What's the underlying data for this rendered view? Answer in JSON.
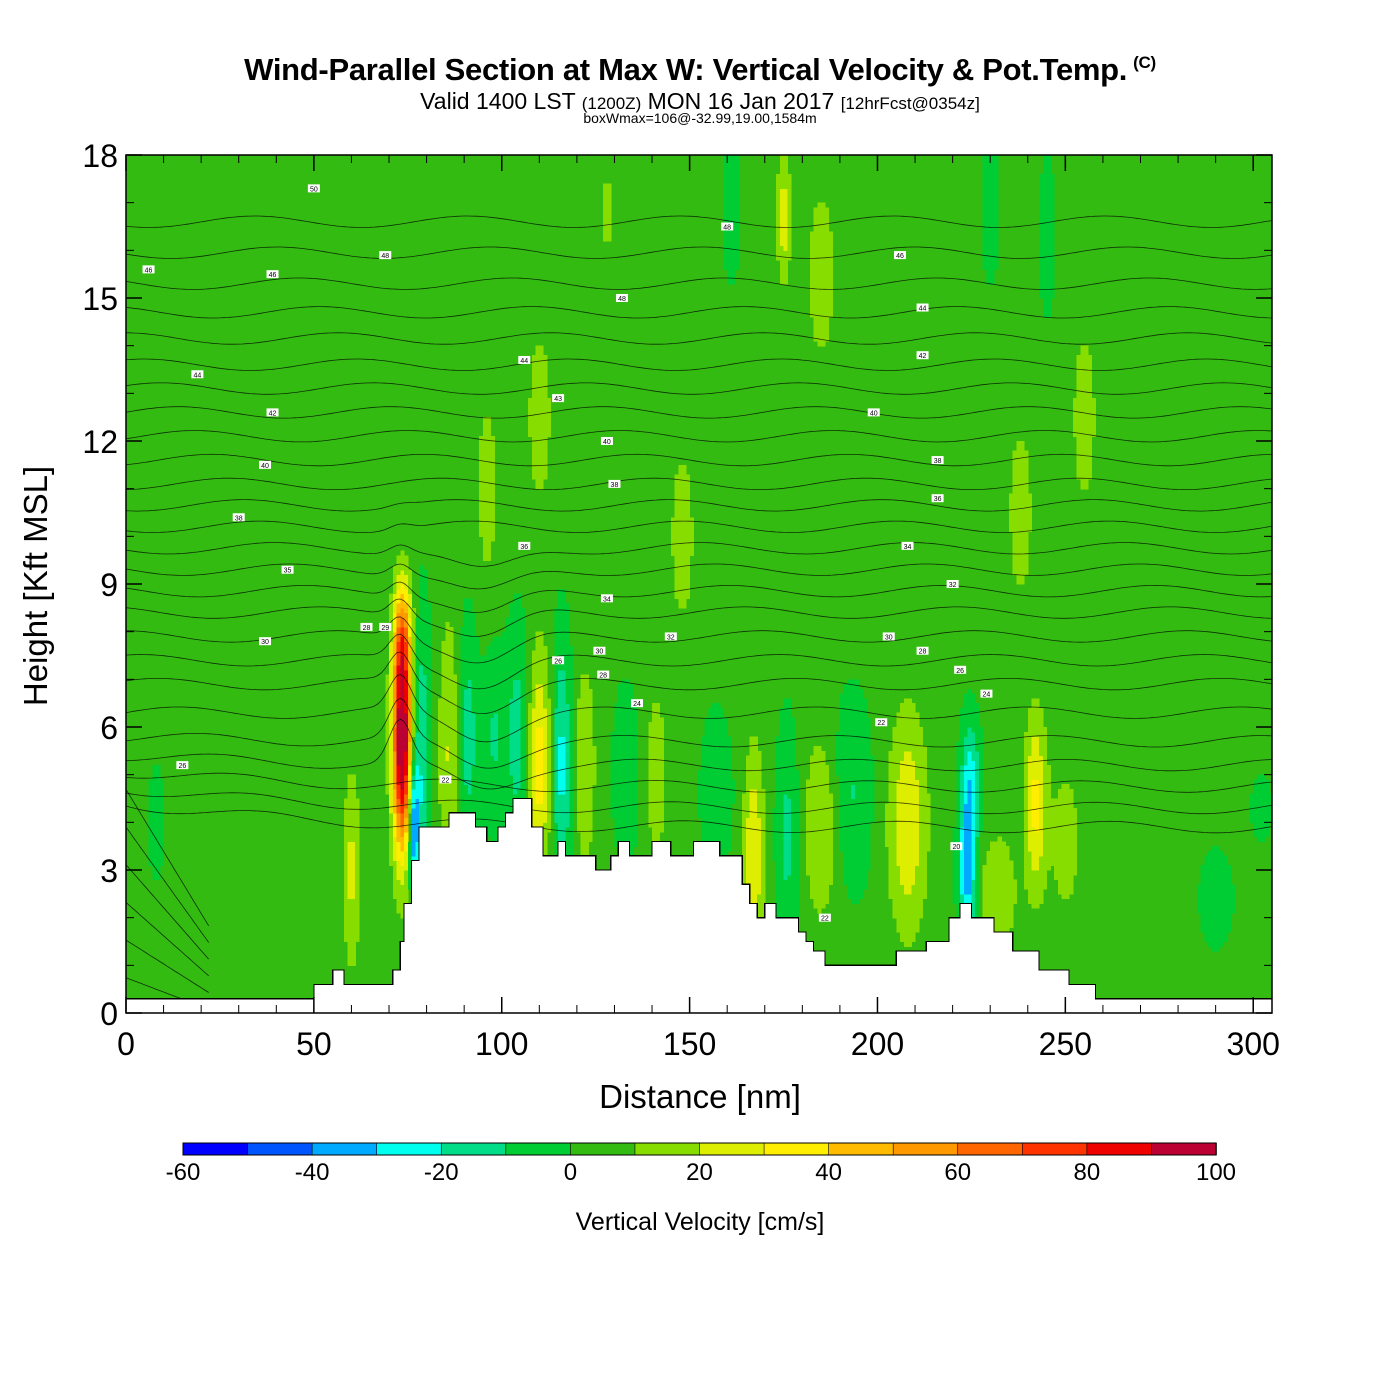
{
  "header": {
    "title": "Wind-Parallel Section at Max W: Vertical Velocity & Pot.Temp.",
    "copyright": "(C)",
    "valid_prefix": "Valid 1400 LST",
    "utc": "(1200Z)",
    "valid_date": "MON 16 Jan 2017",
    "forecast": "[12hrFcst@0354z]",
    "box_wmax": "boxWmax=106@-32.99,19.00,1584m"
  },
  "chart_data": {
    "type": "heatmap",
    "title": "Wind-Parallel Section at Max W: Vertical Velocity & Pot.Temp.",
    "xlabel": "Distance [nm]",
    "ylabel": "Height [Kft MSL]",
    "xlim": [
      0,
      305
    ],
    "ylim": [
      0,
      18
    ],
    "xticks": [
      0,
      50,
      100,
      150,
      200,
      250,
      300
    ],
    "xtick_labels": [
      "0",
      "50",
      "100",
      "150",
      "200",
      "250",
      "300"
    ],
    "yticks": [
      0,
      3,
      6,
      9,
      12,
      15,
      18
    ],
    "ytick_labels": [
      "0",
      "3",
      "6",
      "9",
      "12",
      "15",
      "18"
    ],
    "colorbar": {
      "label": "Vertical Velocity [cm/s]",
      "range": [
        -60,
        100
      ],
      "step": 10,
      "tick_values": [
        -60,
        -40,
        -20,
        0,
        20,
        40,
        60,
        80,
        100
      ],
      "tick_labels": [
        "-60",
        "-40",
        "-20",
        "0",
        "20",
        "40",
        "60",
        "80",
        "100"
      ],
      "colors": [
        "#0000ff",
        "#0055ff",
        "#00aaff",
        "#00ffee",
        "#00dd88",
        "#00cc33",
        "#33bb11",
        "#88dd00",
        "#ddee00",
        "#ffee00",
        "#ffbb00",
        "#ff9900",
        "#ff6600",
        "#ff3300",
        "#ee0000",
        "#bb0033"
      ]
    },
    "background_velocity": 3,
    "terrain": {
      "x": [
        0,
        50,
        50,
        55,
        55,
        58,
        58,
        63,
        63,
        71,
        71,
        73,
        73,
        74,
        74,
        76,
        76,
        78,
        78,
        86,
        86,
        93,
        93,
        96,
        96,
        99,
        99,
        101,
        101,
        103,
        103,
        108,
        108,
        111,
        111,
        115,
        115,
        117,
        117,
        125,
        125,
        129,
        129,
        131,
        131,
        134,
        134,
        140,
        140,
        145,
        145,
        151,
        151,
        158,
        158,
        164,
        164,
        166,
        166,
        168,
        168,
        170,
        170,
        173,
        173,
        179,
        179,
        181,
        181,
        183,
        183,
        186,
        186,
        205,
        205,
        213,
        213,
        219,
        219,
        222,
        222,
        225,
        225,
        231,
        231,
        236,
        236,
        243,
        243,
        251,
        251,
        258,
        258,
        305
      ],
      "y": [
        0.3,
        0.3,
        0.6,
        0.6,
        0.9,
        0.9,
        0.6,
        0.6,
        0.6,
        0.6,
        0.9,
        0.9,
        1.5,
        1.5,
        2.3,
        2.3,
        3.2,
        3.2,
        3.9,
        3.9,
        4.2,
        4.2,
        3.9,
        3.9,
        3.6,
        3.6,
        3.9,
        3.9,
        4.2,
        4.2,
        4.5,
        4.5,
        3.9,
        3.9,
        3.3,
        3.3,
        3.6,
        3.6,
        3.3,
        3.3,
        3.0,
        3.0,
        3.3,
        3.3,
        3.6,
        3.6,
        3.3,
        3.3,
        3.6,
        3.6,
        3.3,
        3.3,
        3.6,
        3.6,
        3.3,
        3.3,
        2.7,
        2.7,
        2.3,
        2.3,
        2.0,
        2.0,
        2.3,
        2.3,
        2.0,
        2.0,
        1.7,
        1.7,
        1.5,
        1.5,
        1.3,
        1.3,
        1.0,
        1.0,
        1.3,
        1.3,
        1.5,
        1.5,
        2.0,
        2.0,
        2.3,
        2.3,
        2.0,
        2.0,
        1.7,
        1.7,
        1.3,
        1.3,
        0.9,
        0.9,
        0.6,
        0.6,
        0.3,
        0.3
      ]
    },
    "velocity_features": [
      {
        "x": 73.5,
        "y": 5.7,
        "sx": 1.8,
        "sy": 1.6,
        "value": 106
      },
      {
        "x": 73.5,
        "y": 7.9,
        "sx": 1.6,
        "sy": 0.8,
        "value": 35
      },
      {
        "x": 78.5,
        "y": 5.5,
        "sx": 1.6,
        "sy": 2.0,
        "value": -22
      },
      {
        "x": 76.5,
        "y": 4.0,
        "sx": 1.0,
        "sy": 1.0,
        "value": -45
      },
      {
        "x": 86,
        "y": 5.5,
        "sx": 2.0,
        "sy": 2.0,
        "value": 18
      },
      {
        "x": 91,
        "y": 5.8,
        "sx": 2.0,
        "sy": 1.6,
        "value": -18
      },
      {
        "x": 98,
        "y": 5.8,
        "sx": 2.0,
        "sy": 1.3,
        "value": -14
      },
      {
        "x": 104,
        "y": 5.8,
        "sx": 2.0,
        "sy": 1.6,
        "value": -18
      },
      {
        "x": 110,
        "y": 5.2,
        "sx": 2.0,
        "sy": 1.6,
        "value": 32
      },
      {
        "x": 116,
        "y": 5.2,
        "sx": 1.8,
        "sy": 1.8,
        "value": -26
      },
      {
        "x": 122,
        "y": 5.2,
        "sx": 2.0,
        "sy": 1.5,
        "value": 16
      },
      {
        "x": 133,
        "y": 5.0,
        "sx": 2.5,
        "sy": 1.3,
        "value": -10
      },
      {
        "x": 141,
        "y": 5.0,
        "sx": 2.0,
        "sy": 1.3,
        "value": 14
      },
      {
        "x": 157,
        "y": 4.6,
        "sx": 3.0,
        "sy": 1.2,
        "value": -10
      },
      {
        "x": 167,
        "y": 3.3,
        "sx": 1.8,
        "sy": 1.5,
        "value": 28
      },
      {
        "x": 176,
        "y": 3.7,
        "sx": 2.0,
        "sy": 1.6,
        "value": -16
      },
      {
        "x": 185,
        "y": 3.9,
        "sx": 3.5,
        "sy": 1.4,
        "value": 16
      },
      {
        "x": 193,
        "y": 4.6,
        "sx": 3.5,
        "sy": 1.4,
        "value": -14
      },
      {
        "x": 208,
        "y": 4.0,
        "sx": 3.5,
        "sy": 1.6,
        "value": 26
      },
      {
        "x": 224,
        "y": 3.0,
        "sx": 1.6,
        "sy": 1.4,
        "value": -38
      },
      {
        "x": 225,
        "y": 4.9,
        "sx": 1.6,
        "sy": 0.9,
        "value": -20
      },
      {
        "x": 232,
        "y": 2.5,
        "sx": 3.5,
        "sy": 0.9,
        "value": 16
      },
      {
        "x": 242,
        "y": 4.4,
        "sx": 2.0,
        "sy": 1.3,
        "value": 30
      },
      {
        "x": 250,
        "y": 3.6,
        "sx": 3.0,
        "sy": 1.2,
        "value": 12
      },
      {
        "x": 290,
        "y": 2.4,
        "sx": 3.0,
        "sy": 0.7,
        "value": -10
      },
      {
        "x": 302,
        "y": 4.3,
        "sx": 2.0,
        "sy": 0.5,
        "value": -8
      },
      {
        "x": 8,
        "y": 4.0,
        "sx": 1.5,
        "sy": 0.8,
        "value": -10
      },
      {
        "x": 60,
        "y": 3.0,
        "sx": 1.5,
        "sy": 1.4,
        "value": 20
      },
      {
        "x": 175,
        "y": 16.7,
        "sx": 1.2,
        "sy": 0.9,
        "value": 24
      },
      {
        "x": 161,
        "y": 16.8,
        "sx": 1.3,
        "sy": 0.9,
        "value": -14
      },
      {
        "x": 230,
        "y": 16.8,
        "sx": 1.3,
        "sy": 0.9,
        "value": -14
      },
      {
        "x": 245,
        "y": 16.3,
        "sx": 1.3,
        "sy": 1.0,
        "value": -14
      },
      {
        "x": 128,
        "y": 16.8,
        "sx": 1.2,
        "sy": 0.8,
        "value": 10
      },
      {
        "x": 185,
        "y": 15.5,
        "sx": 3,
        "sy": 1.5,
        "value": 12
      },
      {
        "x": 238,
        "y": 10.5,
        "sx": 2.5,
        "sy": 1.5,
        "value": 12
      },
      {
        "x": 148,
        "y": 10.0,
        "sx": 2.5,
        "sy": 1.5,
        "value": 12
      },
      {
        "x": 255,
        "y": 12.5,
        "sx": 2.5,
        "sy": 1.5,
        "value": 12
      },
      {
        "x": 110,
        "y": 12.5,
        "sx": 2.5,
        "sy": 1.5,
        "value": 12
      },
      {
        "x": 96,
        "y": 11.0,
        "sx": 2.0,
        "sy": 1.5,
        "value": 12
      }
    ],
    "theta_contours": {
      "levels": [
        26,
        27,
        28,
        29,
        30,
        31,
        32,
        33,
        34,
        35,
        36,
        37,
        38,
        39,
        40,
        41,
        42,
        43,
        44,
        45,
        46,
        47,
        48,
        49,
        50,
        51
      ],
      "base_heights": [
        3.9,
        4.3,
        4.75,
        5.2,
        5.7,
        6.3,
        6.9,
        7.4,
        7.9,
        8.4,
        8.85,
        9.3,
        9.75,
        10.2,
        10.65,
        11.1,
        11.6,
        12.1,
        12.6,
        13.1,
        13.6,
        14.15,
        14.7,
        15.3,
        15.95,
        16.6
      ],
      "labels": [
        {
          "text": "26",
          "x": 15,
          "y": 5.2
        },
        {
          "text": "30",
          "x": 37,
          "y": 7.8
        },
        {
          "text": "28",
          "x": 64,
          "y": 8.1
        },
        {
          "text": "29",
          "x": 69,
          "y": 8.1
        },
        {
          "text": "35",
          "x": 43,
          "y": 9.3
        },
        {
          "text": "38",
          "x": 30,
          "y": 10.4
        },
        {
          "text": "40",
          "x": 37,
          "y": 11.5
        },
        {
          "text": "42",
          "x": 39,
          "y": 12.6
        },
        {
          "text": "44",
          "x": 19,
          "y": 13.4
        },
        {
          "text": "46",
          "x": 39,
          "y": 15.5
        },
        {
          "text": "46",
          "x": 6,
          "y": 15.6
        },
        {
          "text": "48",
          "x": 69,
          "y": 15.9
        },
        {
          "text": "50",
          "x": 50,
          "y": 17.3
        },
        {
          "text": "48",
          "x": 132,
          "y": 15.0
        },
        {
          "text": "48",
          "x": 160,
          "y": 16.5
        },
        {
          "text": "44",
          "x": 106,
          "y": 13.7
        },
        {
          "text": "43",
          "x": 115,
          "y": 12.9
        },
        {
          "text": "40",
          "x": 128,
          "y": 12.0
        },
        {
          "text": "38",
          "x": 130,
          "y": 11.1
        },
        {
          "text": "36",
          "x": 106,
          "y": 9.8
        },
        {
          "text": "34",
          "x": 128,
          "y": 8.7
        },
        {
          "text": "32",
          "x": 145,
          "y": 7.9
        },
        {
          "text": "30",
          "x": 126,
          "y": 7.6
        },
        {
          "text": "28",
          "x": 127,
          "y": 7.1
        },
        {
          "text": "26",
          "x": 115,
          "y": 7.4
        },
        {
          "text": "24",
          "x": 136,
          "y": 6.5
        },
        {
          "text": "22",
          "x": 85,
          "y": 4.9
        },
        {
          "text": "46",
          "x": 206,
          "y": 15.9
        },
        {
          "text": "44",
          "x": 212,
          "y": 14.8
        },
        {
          "text": "42",
          "x": 212,
          "y": 13.8
        },
        {
          "text": "40",
          "x": 199,
          "y": 12.6
        },
        {
          "text": "38",
          "x": 216,
          "y": 11.6
        },
        {
          "text": "36",
          "x": 216,
          "y": 10.8
        },
        {
          "text": "34",
          "x": 208,
          "y": 9.8
        },
        {
          "text": "32",
          "x": 220,
          "y": 9.0
        },
        {
          "text": "30",
          "x": 203,
          "y": 7.9
        },
        {
          "text": "28",
          "x": 212,
          "y": 7.6
        },
        {
          "text": "26",
          "x": 222,
          "y": 7.2
        },
        {
          "text": "24",
          "x": 229,
          "y": 6.7
        },
        {
          "text": "22",
          "x": 201,
          "y": 6.1
        },
        {
          "text": "20",
          "x": 221,
          "y": 3.5
        },
        {
          "text": "22",
          "x": 186,
          "y": 2.0
        }
      ]
    }
  }
}
